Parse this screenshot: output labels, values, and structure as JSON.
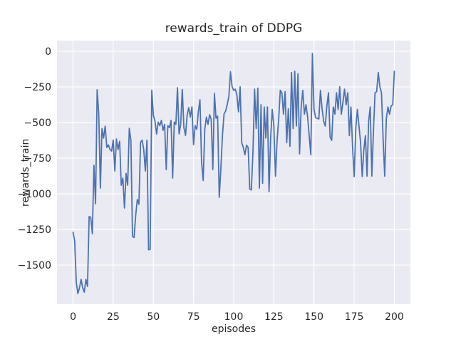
{
  "figure": {
    "background": "#ffffff"
  },
  "chart_data": {
    "type": "line",
    "title": "rewards_train of DDPG",
    "xlabel": "episodes",
    "ylabel": "rewards_train",
    "legend": "none",
    "grid": true,
    "axes_background": "#eaeaf2",
    "grid_color": "#ffffff",
    "line_color": "#4c72b0",
    "text_color": "#262626",
    "xlim": [
      -10,
      210
    ],
    "ylim": [
      -1775,
      75
    ],
    "xticks": [
      0,
      25,
      50,
      75,
      100,
      125,
      150,
      175,
      200
    ],
    "xtick_labels": [
      "0",
      "25",
      "50",
      "75",
      "100",
      "125",
      "150",
      "175",
      "200"
    ],
    "yticks": [
      0,
      -250,
      -500,
      -750,
      -1000,
      -1250,
      -1500
    ],
    "ytick_labels": [
      "0",
      "−250",
      "−500",
      "−750",
      "−1000",
      "−1250",
      "−1500"
    ],
    "x_start": 0,
    "x_step": 1,
    "values": [
      -1270,
      -1330,
      -1620,
      -1700,
      -1660,
      -1600,
      -1660,
      -1690,
      -1600,
      -1650,
      -1160,
      -1165,
      -1280,
      -800,
      -1070,
      -270,
      -440,
      -960,
      -542,
      -609,
      -525,
      -675,
      -657,
      -690,
      -700,
      -623,
      -840,
      -615,
      -690,
      -632,
      -940,
      -890,
      -1100,
      -857,
      -940,
      -540,
      -623,
      -1300,
      -1307,
      -1150,
      -1040,
      -1073,
      -640,
      -623,
      -690,
      -840,
      -623,
      -1393,
      -1390,
      -273,
      -450,
      -490,
      -580,
      -497,
      -522,
      -485,
      -555,
      -513,
      -830,
      -522,
      -535,
      -485,
      -890,
      -497,
      -513,
      -255,
      -580,
      -513,
      -268,
      -535,
      -590,
      -450,
      -395,
      -462,
      -390,
      -655,
      -522,
      -547,
      -423,
      -340,
      -780,
      -907,
      -548,
      -462,
      -513,
      -445,
      -478,
      -830,
      -295,
      -470,
      -455,
      -1025,
      -826,
      -590,
      -440,
      -418,
      -373,
      -315,
      -144,
      -249,
      -274,
      -266,
      -308,
      -425,
      -249,
      -642,
      -675,
      -726,
      -659,
      -675,
      -968,
      -973,
      -700,
      -266,
      -542,
      -258,
      -960,
      -375,
      -926,
      -391,
      -609,
      -391,
      -985,
      -609,
      -408,
      -525,
      -876,
      -630,
      -475,
      -274,
      -291,
      -441,
      -283,
      -642,
      -404,
      -667,
      -149,
      -542,
      -140,
      -525,
      -157,
      -720,
      -391,
      -274,
      -441,
      -375,
      -458,
      -592,
      -726,
      -15,
      -408,
      -466,
      -470,
      -475,
      -274,
      -400,
      -491,
      -525,
      -383,
      -291,
      -600,
      -625,
      -391,
      -441,
      -291,
      -408,
      -249,
      -441,
      -358,
      -266,
      -375,
      -291,
      -592,
      -391,
      -675,
      -879,
      -542,
      -408,
      -525,
      -642,
      -879,
      -692,
      -592,
      -876,
      -491,
      -391,
      -876,
      -558,
      -291,
      -283,
      -149,
      -249,
      -291,
      -609,
      -876,
      -475,
      -391,
      -441,
      -383,
      -375,
      -140
    ]
  }
}
